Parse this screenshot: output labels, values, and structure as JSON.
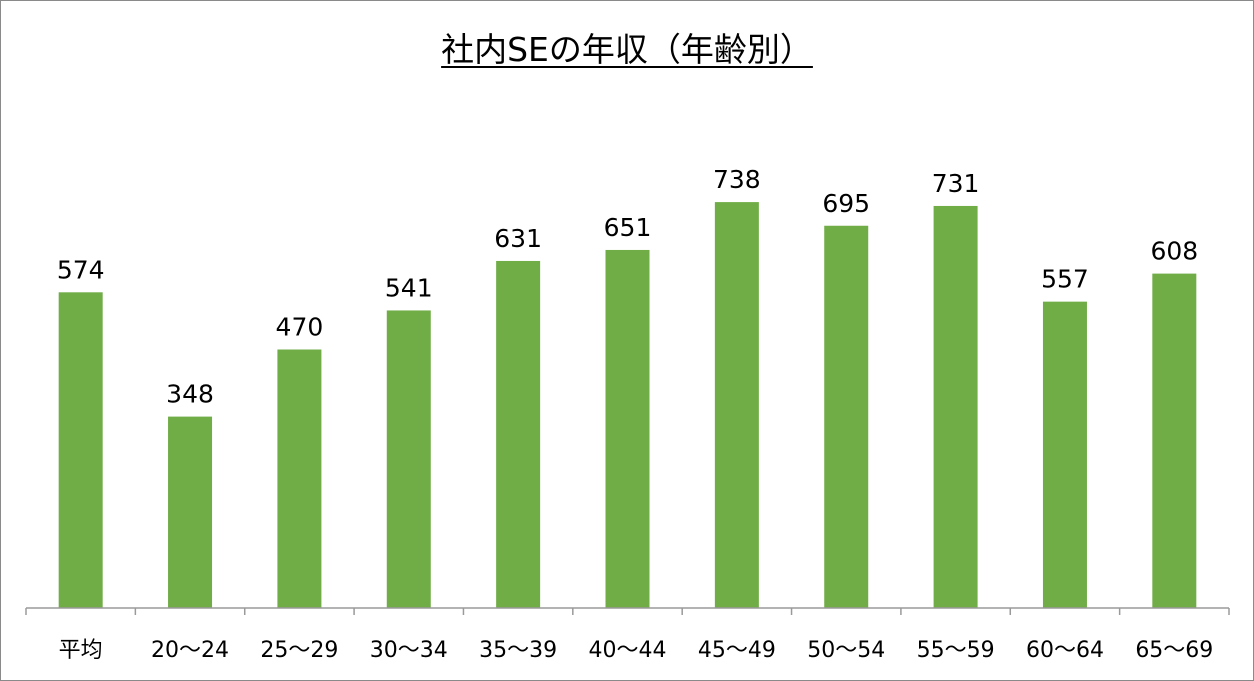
{
  "chart_data": {
    "type": "bar",
    "title": "社内SEの年収（年齢別）",
    "categories": [
      "平均",
      "20〜24",
      "25〜29",
      "30〜34",
      "35〜39",
      "40〜44",
      "45〜49",
      "50〜54",
      "55〜59",
      "60〜64",
      "65〜69"
    ],
    "values": [
      574,
      348,
      470,
      541,
      631,
      651,
      738,
      695,
      731,
      557,
      608
    ],
    "ylim": [
      0,
      900
    ],
    "grid": false,
    "legend": "none",
    "bar_color": "#70AD47",
    "data_labels": true
  }
}
